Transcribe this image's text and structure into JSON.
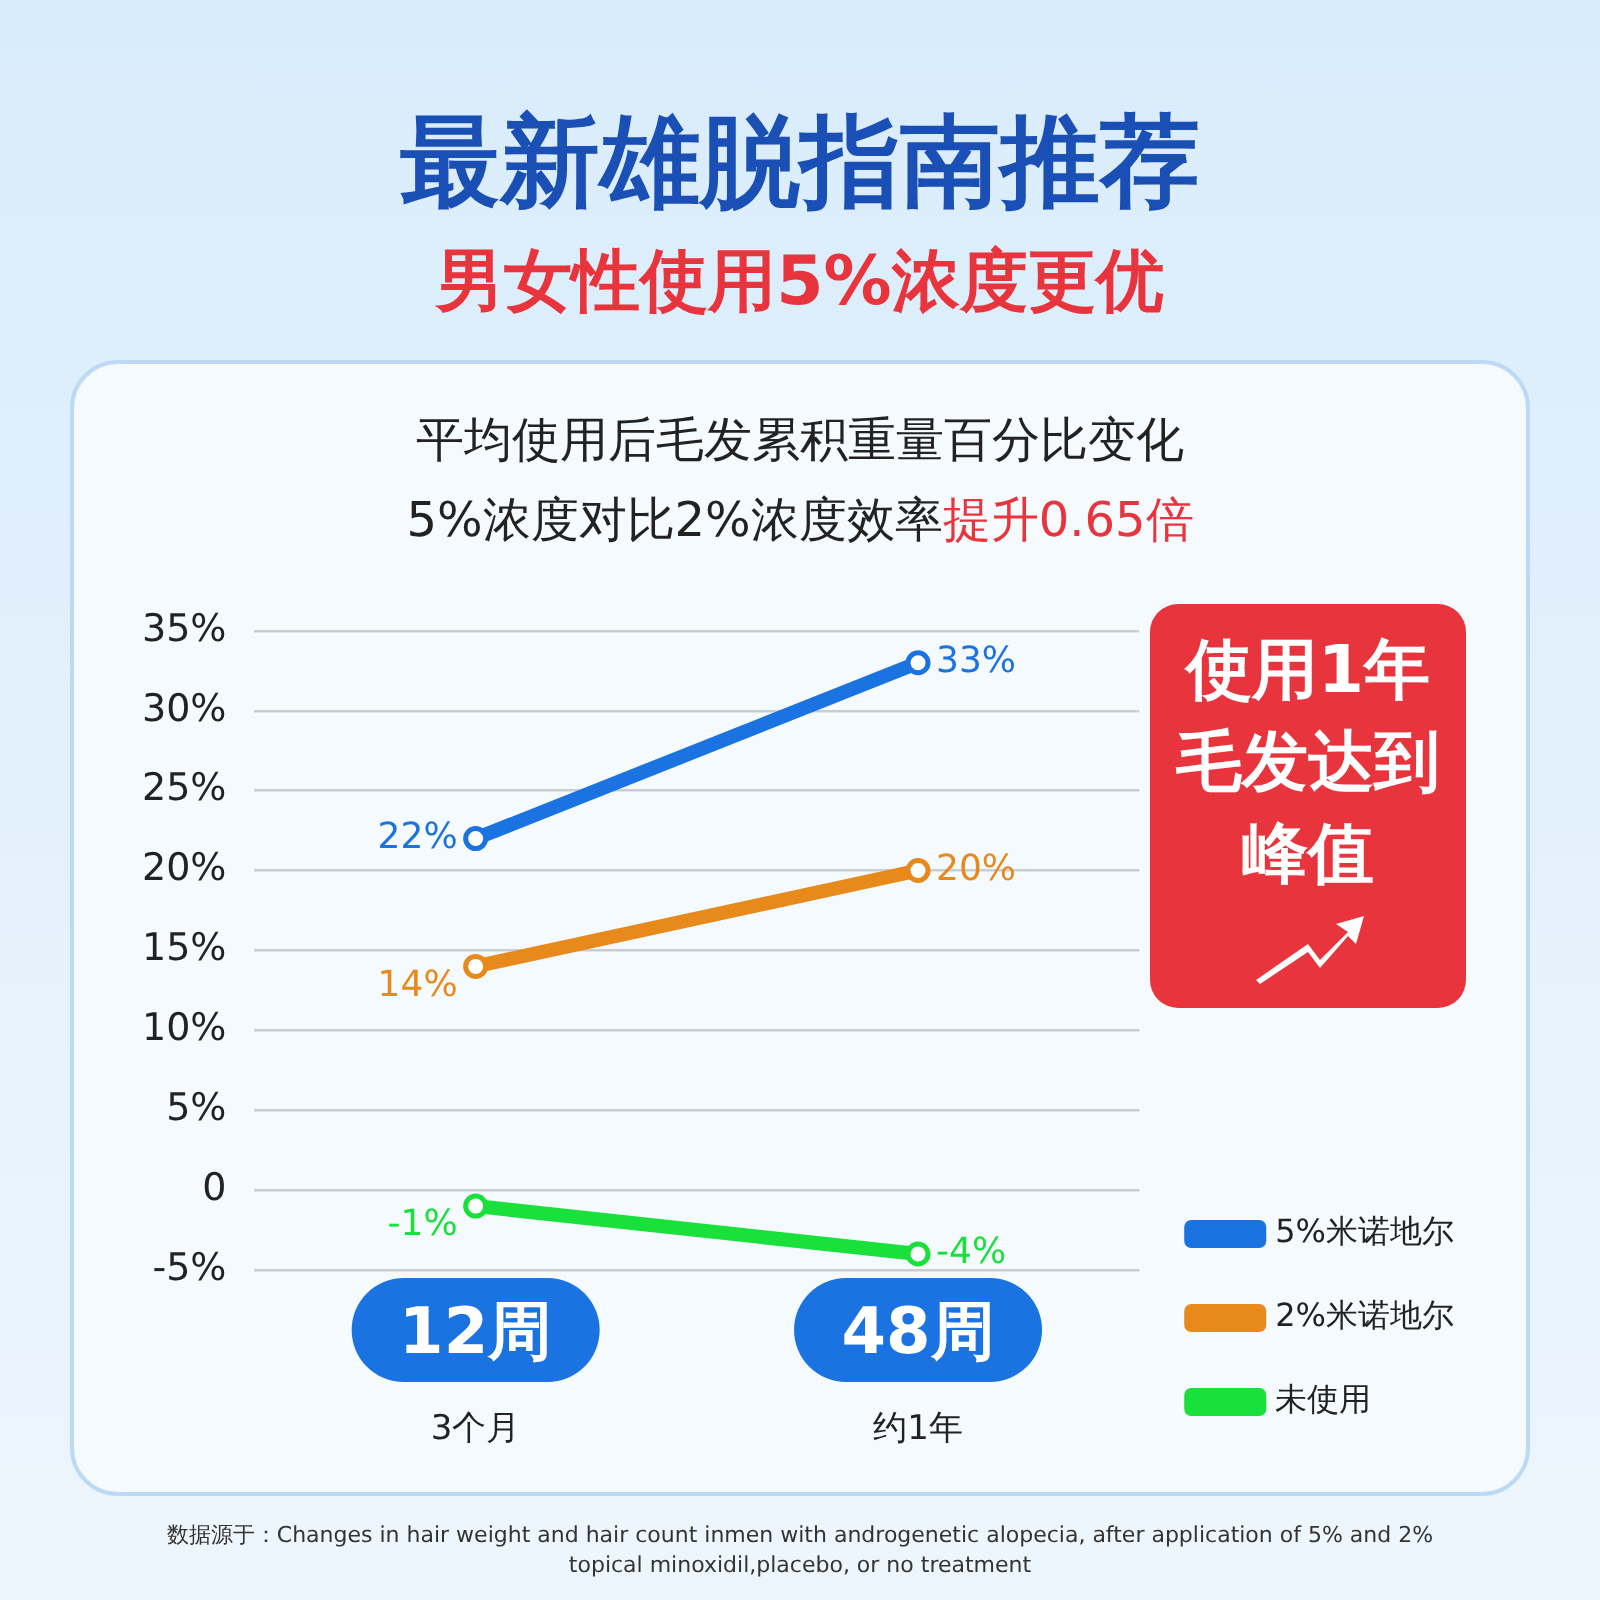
{
  "chart_data": {
    "type": "line",
    "title": "最新雄脱指南推荐",
    "subtitle": "男女性使用5%浓度更优",
    "categories": [
      "12周",
      "48周"
    ],
    "series": [
      {
        "name": "5%米诺地尔",
        "color": "#1a73e0",
        "values": [
          22,
          33
        ],
        "value_labels": [
          "22%",
          "33%"
        ]
      },
      {
        "name": "2%米诺地尔",
        "color": "#e8891c",
        "values": [
          14,
          20
        ],
        "value_labels": [
          "14%",
          "20%"
        ]
      },
      {
        "name": "未使用",
        "color": "#19e03a",
        "values": [
          -1,
          -4
        ],
        "value_labels": [
          "-1%",
          "-4%"
        ]
      }
    ],
    "ylim": [
      -5,
      35
    ],
    "yticks": [
      {
        "value": -5,
        "label": "-5%"
      },
      0,
      {
        "value": 5,
        "label": "5%"
      },
      {
        "value": 10,
        "label": "10%"
      },
      {
        "value": 15,
        "label": "15%"
      },
      {
        "value": 20,
        "label": "20%"
      },
      {
        "value": 25,
        "label": "25%"
      },
      {
        "value": 30,
        "label": "30%"
      },
      {
        "value": 35,
        "label": "35%"
      }
    ],
    "grid": "y",
    "legend": "bottom right",
    "marker": "circle",
    "line_style": "solid",
    "annotations": [
      "平均使用后毛发累积重量百分比变化",
      "5%浓度对比2%浓度效率",
      "提升0.65倍",
      "使用1年毛发达到峰值",
      "3个月",
      "约1年",
      "数据源于：Changes in hair weight and hair count inmen with androgenetic alopecia, after application of 5% and 2% topical minoxidil,placebo, or no treatment"
    ]
  }
}
